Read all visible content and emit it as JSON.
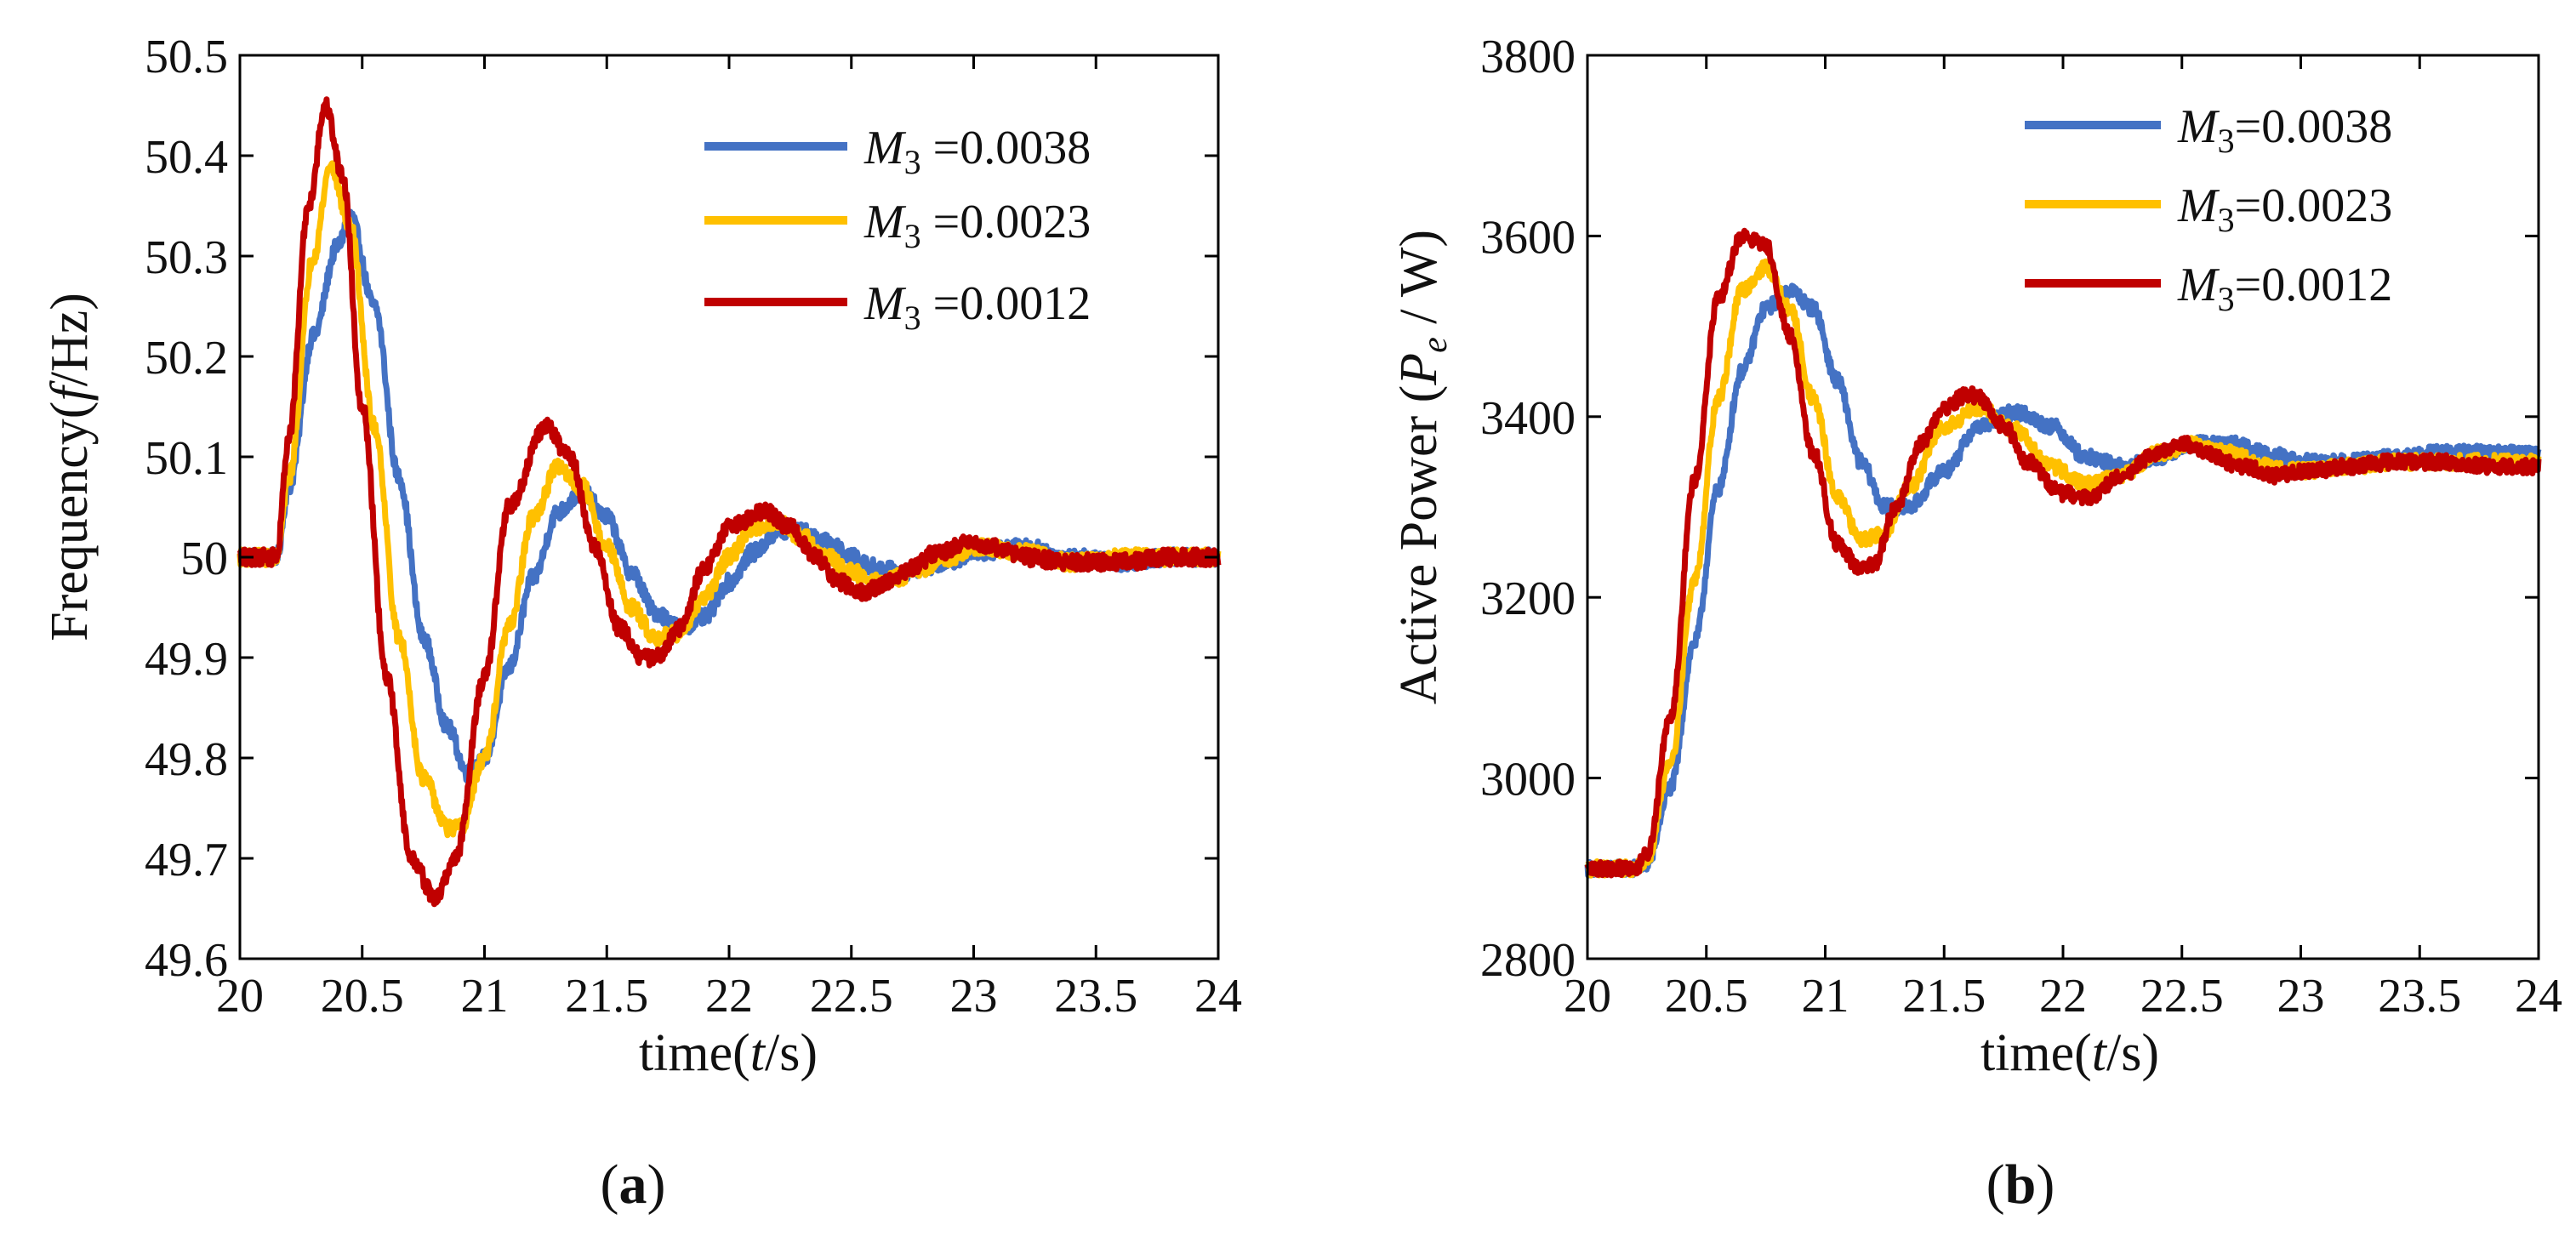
{
  "figure": {
    "panel_labels": [
      {
        "open": "(",
        "letter": "a",
        "close": ")"
      },
      {
        "open": "(",
        "letter": "b",
        "close": ")"
      }
    ],
    "colors": {
      "blue": "#4472C4",
      "yellow": "#FFC000",
      "red": "#C00000"
    }
  },
  "chart_data": [
    {
      "type": "line",
      "panel": "a",
      "ylabel": {
        "pre": "Frequency(",
        "var": "f",
        "post": "/Hz)"
      },
      "xlabel": {
        "pre": "time(",
        "var": "t",
        "post": "/s)"
      },
      "xlim": [
        20,
        24
      ],
      "ylim": [
        49.6,
        50.5
      ],
      "xticks": [
        20,
        20.5,
        21,
        21.5,
        22,
        22.5,
        23,
        23.5,
        24
      ],
      "xtick_labels": [
        "20",
        "20.5",
        "21",
        "21.5",
        "22",
        "22.5",
        "23",
        "23.5",
        "24"
      ],
      "yticks": [
        49.6,
        49.7,
        49.8,
        49.9,
        50,
        50.1,
        50.2,
        50.3,
        50.4,
        50.5
      ],
      "ytick_labels": [
        "49.6",
        "49.7",
        "49.8",
        "49.9",
        "50",
        "50.1",
        "50.2",
        "50.3",
        "50.4",
        "50.5"
      ],
      "legend_position": "top-right",
      "series": [
        {
          "name": "M3 =0.0038",
          "sym": "M",
          "sub": "3",
          "value": " =0.0038",
          "color": "#4472C4",
          "noise": 0.008,
          "x": [
            20,
            20.15,
            20.2,
            20.3,
            20.4,
            20.45,
            20.55,
            20.65,
            20.75,
            20.85,
            20.93,
            21.0,
            21.1,
            21.2,
            21.3,
            21.4,
            21.5,
            21.6,
            21.7,
            21.8,
            21.9,
            22.0,
            22.1,
            22.2,
            22.3,
            22.4,
            22.5,
            22.6,
            22.7,
            22.8,
            22.9,
            23.0,
            23.2,
            23.4,
            23.6,
            23.8,
            24.0
          ],
          "y": [
            50.0,
            50.0,
            50.07,
            50.22,
            50.31,
            50.34,
            50.25,
            50.08,
            49.92,
            49.83,
            49.785,
            49.8,
            49.89,
            49.98,
            50.045,
            50.065,
            50.04,
            49.985,
            49.945,
            49.93,
            49.94,
            49.975,
            50.005,
            50.025,
            50.025,
            50.015,
            50.0,
            49.99,
            49.985,
            49.99,
            49.995,
            50.005,
            50.01,
            50.0,
            49.995,
            50.0,
            50.0
          ]
        },
        {
          "name": "M3 =0.0023",
          "sym": "M",
          "sub": "3",
          "value": " =0.0023",
          "color": "#FFC000",
          "noise": 0.008,
          "x": [
            20,
            20.15,
            20.2,
            20.3,
            20.37,
            20.45,
            20.55,
            20.65,
            20.75,
            20.85,
            20.9,
            21.0,
            21.1,
            21.2,
            21.3,
            21.4,
            21.5,
            21.6,
            21.7,
            21.8,
            21.9,
            22.0,
            22.1,
            22.2,
            22.3,
            22.4,
            22.5,
            22.6,
            22.7,
            22.8,
            22.9,
            23.0,
            23.2,
            23.4,
            23.6,
            23.8,
            24.0
          ],
          "y": [
            50.0,
            50.0,
            50.08,
            50.3,
            50.39,
            50.33,
            50.13,
            49.92,
            49.78,
            49.73,
            49.73,
            49.8,
            49.93,
            50.04,
            50.09,
            50.07,
            50.01,
            49.95,
            49.92,
            49.925,
            49.96,
            50.0,
            50.03,
            50.035,
            50.02,
            50.0,
            49.985,
            49.975,
            49.98,
            49.99,
            50.0,
            50.01,
            50.005,
            49.995,
            50.0,
            50.0,
            50.0
          ]
        },
        {
          "name": "M3 =0.0012",
          "sym": "M",
          "sub": "3",
          "value": " =0.0012",
          "color": "#C00000",
          "noise": 0.008,
          "x": [
            20,
            20.15,
            20.2,
            20.28,
            20.35,
            20.42,
            20.5,
            20.6,
            20.7,
            20.8,
            20.88,
            21.0,
            21.1,
            21.25,
            21.35,
            21.45,
            21.55,
            21.65,
            21.7,
            21.8,
            21.9,
            22.0,
            22.15,
            22.25,
            22.35,
            22.45,
            22.55,
            22.65,
            22.75,
            22.85,
            23.0,
            23.1,
            23.2,
            23.4,
            23.6,
            23.8,
            24.0
          ],
          "y": [
            50.0,
            50.0,
            50.12,
            50.35,
            50.45,
            50.38,
            50.15,
            49.88,
            49.7,
            49.66,
            49.7,
            49.88,
            50.05,
            50.13,
            50.1,
            50.01,
            49.93,
            49.9,
            49.9,
            49.93,
            49.99,
            50.03,
            50.045,
            50.03,
            50.0,
            49.975,
            49.965,
            49.975,
            49.99,
            50.005,
            50.015,
            50.01,
            50.0,
            49.995,
            49.995,
            50.0,
            50.0
          ]
        }
      ]
    },
    {
      "type": "line",
      "panel": "b",
      "ylabel": {
        "pre": "Active Power (",
        "var": "P",
        "sub": "e",
        "post": " / W)"
      },
      "xlabel": {
        "pre": "time(",
        "var": "t",
        "post": "/s)"
      },
      "xlim": [
        20,
        24
      ],
      "ylim": [
        2800,
        3800
      ],
      "xticks": [
        20,
        20.5,
        21,
        21.5,
        22,
        22.5,
        23,
        23.5,
        24
      ],
      "xtick_labels": [
        "20",
        "20.5",
        "21",
        "21.5",
        "22",
        "22.5",
        "23",
        "23.5",
        "24"
      ],
      "yticks": [
        2800,
        3000,
        3200,
        3400,
        3600,
        3800
      ],
      "ytick_labels": [
        "2800",
        "3000",
        "3200",
        "3400",
        "3600",
        "3800"
      ],
      "legend_position": "top-right",
      "series": [
        {
          "name": "M3 =0.0038",
          "sym": "M",
          "sub": "3",
          "value": "=0.0038",
          "color": "#4472C4",
          "noise": 8,
          "x": [
            20,
            20.2,
            20.25,
            20.35,
            20.45,
            20.55,
            20.65,
            20.75,
            20.85,
            20.95,
            21.05,
            21.15,
            21.25,
            21.35,
            21.5,
            21.65,
            21.8,
            21.95,
            22.1,
            22.25,
            22.4,
            22.55,
            22.7,
            22.85,
            23.0,
            23.2,
            23.4,
            23.6,
            23.8,
            24.0
          ],
          "y": [
            2900,
            2900,
            2905,
            2990,
            3150,
            3320,
            3450,
            3520,
            3540,
            3520,
            3440,
            3350,
            3300,
            3300,
            3340,
            3390,
            3405,
            3390,
            3355,
            3345,
            3355,
            3370,
            3370,
            3360,
            3350,
            3350,
            3355,
            3360,
            3360,
            3360
          ]
        },
        {
          "name": "M3 =0.0023",
          "sym": "M",
          "sub": "3",
          "value": "=0.0023",
          "color": "#FFC000",
          "noise": 8,
          "x": [
            20,
            20.2,
            20.25,
            20.35,
            20.45,
            20.55,
            20.65,
            20.75,
            20.85,
            20.95,
            21.05,
            21.15,
            21.25,
            21.35,
            21.5,
            21.65,
            21.8,
            21.95,
            22.1,
            22.25,
            22.4,
            22.55,
            22.7,
            22.85,
            23.0,
            23.2,
            23.4,
            23.6,
            23.8,
            24.0
          ],
          "y": [
            2900,
            2900,
            2910,
            3020,
            3220,
            3420,
            3540,
            3565,
            3520,
            3420,
            3310,
            3265,
            3270,
            3320,
            3390,
            3410,
            3385,
            3345,
            3325,
            3335,
            3360,
            3370,
            3360,
            3345,
            3340,
            3345,
            3350,
            3350,
            3350,
            3350
          ]
        },
        {
          "name": "M3 =0.0012",
          "sym": "M",
          "sub": "3",
          "value": "=0.0012",
          "color": "#C00000",
          "noise": 8,
          "x": [
            20,
            20.2,
            20.25,
            20.35,
            20.45,
            20.55,
            20.65,
            20.75,
            20.85,
            20.95,
            21.05,
            21.15,
            21.2,
            21.3,
            21.4,
            21.5,
            21.6,
            21.65,
            21.75,
            21.85,
            22.0,
            22.1,
            22.25,
            22.4,
            22.5,
            22.6,
            22.75,
            22.9,
            23.05,
            23.2,
            23.4,
            23.6,
            23.8,
            24.0
          ],
          "y": [
            2900,
            2900,
            2915,
            3070,
            3330,
            3530,
            3600,
            3590,
            3490,
            3360,
            3260,
            3230,
            3235,
            3300,
            3370,
            3410,
            3425,
            3420,
            3390,
            3350,
            3315,
            3310,
            3335,
            3360,
            3370,
            3360,
            3345,
            3335,
            3340,
            3345,
            3350,
            3350,
            3345,
            3345
          ]
        }
      ]
    }
  ]
}
